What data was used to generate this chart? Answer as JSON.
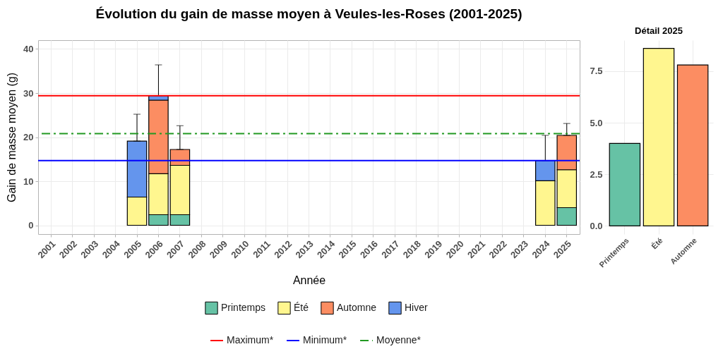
{
  "chart_data": [
    {
      "type": "bar",
      "title": "Évolution du gain de masse moyen à Veules-les-Roses (2001-2025)",
      "xlabel": "Année",
      "ylabel": "Gain de masse moyen (g)",
      "categories": [
        "2001",
        "2002",
        "2003",
        "2004",
        "2005",
        "2006",
        "2007",
        "2008",
        "2009",
        "2010",
        "2011",
        "2012",
        "2013",
        "2014",
        "2015",
        "2016",
        "2017",
        "2018",
        "2019",
        "2020",
        "2021",
        "2022",
        "2023",
        "2024",
        "2025"
      ],
      "stacked": true,
      "series": [
        {
          "name": "Printemps",
          "color": "#66c2a5",
          "values": [
            null,
            null,
            null,
            null,
            null,
            2.4,
            2.4,
            null,
            null,
            null,
            null,
            null,
            null,
            null,
            null,
            null,
            null,
            null,
            null,
            null,
            null,
            null,
            null,
            null,
            4.0
          ]
        },
        {
          "name": "Été",
          "color": "#fff68f",
          "values": [
            null,
            null,
            null,
            null,
            6.4,
            9.3,
            11.2,
            null,
            null,
            null,
            null,
            null,
            null,
            null,
            null,
            null,
            null,
            null,
            null,
            null,
            null,
            null,
            null,
            10.1,
            8.6
          ]
        },
        {
          "name": "Automne",
          "color": "#fc8d62",
          "values": [
            null,
            null,
            null,
            null,
            null,
            16.7,
            3.6,
            null,
            null,
            null,
            null,
            null,
            null,
            null,
            null,
            null,
            null,
            null,
            null,
            null,
            null,
            null,
            null,
            null,
            7.8
          ],
          "errors": [
            null,
            null,
            null,
            null,
            null,
            null,
            [
              17.2,
              22.6
            ],
            null,
            null,
            null,
            null,
            null,
            null,
            null,
            null,
            null,
            null,
            null,
            null,
            null,
            null,
            null,
            null,
            null,
            [
              20.4,
              23.1
            ]
          ]
        },
        {
          "name": "Hiver",
          "color": "#6495ed",
          "values": [
            null,
            null,
            null,
            null,
            12.7,
            1.0,
            null,
            null,
            null,
            null,
            null,
            null,
            null,
            null,
            null,
            null,
            null,
            null,
            null,
            null,
            null,
            null,
            null,
            4.6,
            null
          ],
          "errors": [
            null,
            null,
            null,
            null,
            [
              19.1,
              25.2
            ],
            [
              29.4,
              36.4
            ],
            null,
            null,
            null,
            null,
            null,
            null,
            null,
            null,
            null,
            null,
            null,
            null,
            null,
            null,
            null,
            null,
            null,
            [
              14.7,
              20.4
            ],
            null
          ]
        }
      ],
      "ylim": [
        -2,
        42
      ],
      "yticks": [
        0,
        10,
        20,
        30,
        40
      ],
      "grid": true,
      "legend": "bottom",
      "ref_lines": [
        {
          "axis": "y",
          "value": 29.4,
          "label": "Maximum*",
          "color": "#ff0000",
          "line_style": "solid"
        },
        {
          "axis": "y",
          "value": 14.7,
          "label": "Minimum*",
          "color": "#0000ff",
          "line_style": "solid"
        },
        {
          "axis": "y",
          "value": 20.8,
          "label": "Moyenne*",
          "color": "#229922",
          "line_style": "dashdot"
        }
      ]
    },
    {
      "type": "bar",
      "title": "Détail 2025",
      "categories": [
        "Printemps",
        "Été",
        "Automne"
      ],
      "values": [
        4.0,
        8.6,
        7.8
      ],
      "colors": [
        "#66c2a5",
        "#fff68f",
        "#fc8d62"
      ],
      "ylim": [
        -0.4,
        9.0
      ],
      "yticks": [
        {
          "value": 0,
          "label": "0.0"
        },
        {
          "value": 2.5,
          "label": "2.5"
        },
        {
          "value": 5,
          "label": "5.0"
        },
        {
          "value": 7.5,
          "label": "7.5"
        }
      ],
      "grid": true
    }
  ]
}
